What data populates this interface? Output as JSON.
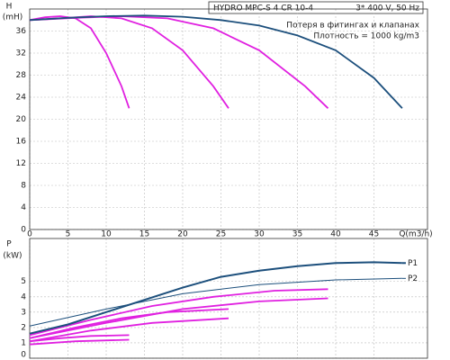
{
  "chart_data": [
    {
      "type": "line",
      "title": "HYDRO MPC-S 4 CR 10-4",
      "subtitle": "3* 400 V, 50 Hz",
      "notes": [
        "Потеря в фитингах и клапанах",
        "Плотность = 1000 kg/m3"
      ],
      "y_label": "H",
      "y_unit": "(mH)",
      "x_label": "Q(m3/h)",
      "xlim": [
        0,
        52
      ],
      "xticks": [
        0,
        5,
        10,
        15,
        20,
        25,
        30,
        35,
        40,
        45
      ],
      "ylim": [
        0,
        40
      ],
      "yticks": [
        0,
        4,
        8,
        12,
        16,
        20,
        24,
        28,
        32,
        36
      ],
      "grid": true,
      "series": [
        {
          "color": "#e020e0",
          "x": [
            0,
            2,
            4,
            6,
            8,
            10,
            12,
            13
          ],
          "values": [
            38,
            38.5,
            38.7,
            38.3,
            36.5,
            32,
            26,
            22
          ]
        },
        {
          "color": "#e020e0",
          "x": [
            0,
            4,
            8,
            12,
            16,
            20,
            24,
            26
          ],
          "values": [
            38,
            38.3,
            38.7,
            38.3,
            36.5,
            32.5,
            26,
            22
          ]
        },
        {
          "color": "#e020e0",
          "x": [
            0,
            6,
            12,
            18,
            24,
            30,
            36,
            39
          ],
          "values": [
            38,
            38.4,
            38.7,
            38.3,
            36.5,
            32.5,
            26,
            22
          ]
        },
        {
          "color": "#1c4f7c",
          "x": [
            0,
            5,
            10,
            15,
            20,
            25,
            30,
            35,
            40,
            45,
            48.7
          ],
          "values": [
            38,
            38.4,
            38.7,
            38.8,
            38.6,
            38,
            37,
            35.2,
            32.5,
            27.5,
            22
          ]
        }
      ]
    },
    {
      "type": "line",
      "y_label": "P",
      "y_unit": "(kW)",
      "xlim": [
        0,
        52
      ],
      "ylim": [
        0,
        7.8
      ],
      "yticks": [
        0,
        1,
        2,
        3,
        4,
        5
      ],
      "grid": true,
      "series": [
        {
          "color": "#e020e0",
          "x": [
            0,
            4,
            8,
            13
          ],
          "values": [
            1.1,
            1.3,
            1.45,
            1.5
          ]
        },
        {
          "color": "#e020e0",
          "x": [
            0,
            6,
            13
          ],
          "values": [
            0.9,
            1.1,
            1.2
          ]
        },
        {
          "color": "#e020e0",
          "x": [
            0,
            6,
            12,
            18,
            26
          ],
          "values": [
            1.3,
            2.0,
            2.6,
            3.0,
            3.2
          ]
        },
        {
          "color": "#e020e0",
          "x": [
            0,
            8,
            16,
            26
          ],
          "values": [
            1.1,
            1.8,
            2.3,
            2.6
          ]
        },
        {
          "color": "#e020e0",
          "x": [
            0,
            8,
            16,
            24,
            32,
            39
          ],
          "values": [
            1.5,
            2.5,
            3.4,
            4.0,
            4.4,
            4.5
          ]
        },
        {
          "color": "#e020e0",
          "x": [
            0,
            10,
            20,
            30,
            39
          ],
          "values": [
            1.3,
            2.3,
            3.2,
            3.7,
            3.9
          ]
        },
        {
          "name": "P1",
          "color": "#1c4f7c",
          "width": 2,
          "x": [
            0,
            5,
            10,
            15,
            20,
            25,
            30,
            35,
            40,
            45,
            48.7
          ],
          "values": [
            1.6,
            2.2,
            3.0,
            3.8,
            4.6,
            5.3,
            5.7,
            6.0,
            6.2,
            6.25,
            6.2
          ]
        },
        {
          "name": "P2",
          "color": "#1c4f7c",
          "width": 1,
          "x": [
            0,
            10,
            20,
            30,
            40,
            48.7
          ],
          "values": [
            2.1,
            3.2,
            4.2,
            4.8,
            5.1,
            5.2
          ]
        }
      ]
    }
  ]
}
